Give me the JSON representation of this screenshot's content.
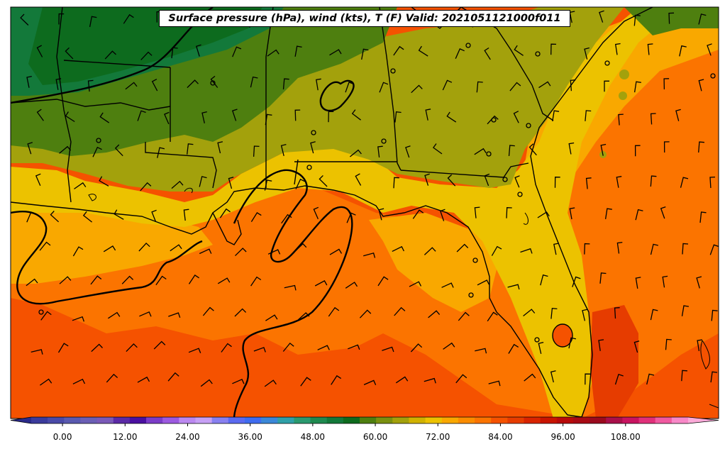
{
  "title": "Surface pressure (hPa), wind (kts), T (F) Valid: 2021051121000f011",
  "colorbar": {
    "tick_labels": [
      "0.00",
      "12.00",
      "24.00",
      "36.00",
      "48.00",
      "60.00",
      "72.00",
      "84.00",
      "96.00",
      "108.00"
    ],
    "min": -6,
    "max": 120,
    "step": 3,
    "extend": "both"
  },
  "field_colors": {
    "deep_green": "#0d6b1e",
    "green": "#13793a",
    "olive_green": "#4e7f0f",
    "olive": "#a3a10c",
    "yellow": "#ecc200",
    "light_orange": "#f9a800",
    "orange": "#fb7400",
    "dark_orange": "#f55200",
    "red_orange": "#e63c00",
    "water_ring": "#000000"
  }
}
